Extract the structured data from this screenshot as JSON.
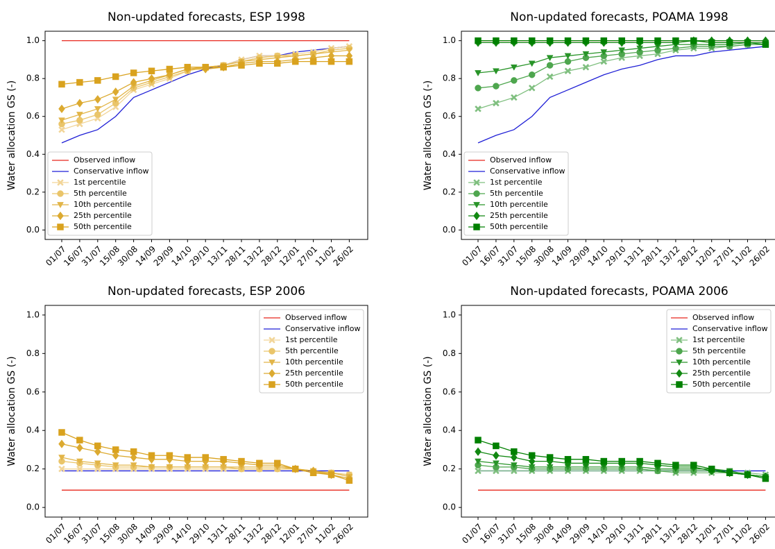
{
  "chart_data": [
    {
      "type": "line",
      "title": "Non-updated forecasts, ESP 1998",
      "y_label": "Water allocation GS (-)",
      "categories": [
        "01/07",
        "16/07",
        "31/07",
        "15/08",
        "30/08",
        "14/09",
        "29/09",
        "14/10",
        "29/10",
        "13/11",
        "28/11",
        "13/12",
        "28/12",
        "12/01",
        "27/01",
        "11/02",
        "26/02"
      ],
      "ylim": [
        -0.05,
        1.05
      ],
      "yticks": [
        {
          "value": 0,
          "label": "0.0"
        },
        0.2,
        0.4,
        0.6,
        0.8,
        {
          "value": 1,
          "label": "1.0"
        }
      ],
      "legend": "lower left",
      "series": [
        {
          "name": "Observed inflow",
          "color": "#e8261c",
          "values": [
            1,
            1,
            1,
            1,
            1,
            1,
            1,
            1,
            1,
            1,
            1,
            1,
            1,
            1,
            1,
            1,
            1
          ]
        },
        {
          "name": "Conservative inflow",
          "color": "#1f1fd6",
          "values": [
            0.46,
            0.5,
            0.53,
            0.6,
            0.7,
            0.74,
            0.78,
            0.82,
            0.85,
            0.87,
            0.9,
            0.92,
            0.92,
            0.94,
            0.95,
            0.96,
            0.97
          ]
        },
        {
          "name": "1st percentile",
          "color": "#f2d598",
          "marker": "x",
          "values": [
            0.53,
            0.56,
            0.59,
            0.65,
            0.74,
            0.77,
            0.8,
            0.84,
            0.86,
            0.87,
            0.9,
            0.92,
            0.92,
            0.93,
            0.94,
            0.96,
            0.97
          ]
        },
        {
          "name": "5th percentile",
          "color": "#eac56a",
          "marker": "circle",
          "values": [
            0.56,
            0.58,
            0.61,
            0.67,
            0.75,
            0.78,
            0.81,
            0.84,
            0.86,
            0.87,
            0.89,
            0.91,
            0.92,
            0.92,
            0.93,
            0.95,
            0.96
          ]
        },
        {
          "name": "10th percentile",
          "color": "#e2b548",
          "marker": "triangle",
          "values": [
            0.58,
            0.61,
            0.64,
            0.69,
            0.76,
            0.79,
            0.82,
            0.85,
            0.86,
            0.87,
            0.89,
            0.9,
            0.91,
            0.92,
            0.93,
            0.94,
            0.95
          ]
        },
        {
          "name": "25th percentile",
          "color": "#dcaa30",
          "marker": "diamond",
          "values": [
            0.64,
            0.67,
            0.69,
            0.73,
            0.78,
            0.8,
            0.82,
            0.85,
            0.85,
            0.86,
            0.88,
            0.89,
            0.89,
            0.9,
            0.91,
            0.92,
            0.92
          ]
        },
        {
          "name": "50th percentile",
          "color": "#d9a21e",
          "marker": "square",
          "values": [
            0.77,
            0.78,
            0.79,
            0.81,
            0.83,
            0.84,
            0.85,
            0.86,
            0.86,
            0.86,
            0.87,
            0.88,
            0.88,
            0.89,
            0.89,
            0.89,
            0.89
          ]
        }
      ]
    },
    {
      "type": "line",
      "title": "Non-updated forecasts, POAMA 1998",
      "y_label": "Water allocation GS (-)",
      "categories": [
        "01/07",
        "16/07",
        "31/07",
        "15/08",
        "30/08",
        "14/09",
        "29/09",
        "14/10",
        "29/10",
        "13/11",
        "28/11",
        "13/12",
        "28/12",
        "12/01",
        "27/01",
        "11/02",
        "26/02"
      ],
      "ylim": [
        -0.05,
        1.05
      ],
      "yticks": [
        {
          "value": 0,
          "label": "0.0"
        },
        0.2,
        0.4,
        0.6,
        0.8,
        {
          "value": 1,
          "label": "1.0"
        }
      ],
      "legend": "lower left",
      "series": [
        {
          "name": "Observed inflow",
          "color": "#e8261c",
          "values": [
            1,
            1,
            1,
            1,
            1,
            1,
            1,
            1,
            1,
            1,
            1,
            1,
            1,
            1,
            1,
            1,
            1
          ]
        },
        {
          "name": "Conservative inflow",
          "color": "#1f1fd6",
          "values": [
            0.46,
            0.5,
            0.53,
            0.6,
            0.7,
            0.74,
            0.78,
            0.82,
            0.85,
            0.87,
            0.9,
            0.92,
            0.92,
            0.94,
            0.95,
            0.96,
            0.97
          ]
        },
        {
          "name": "1st percentile",
          "color": "#7fbf7f",
          "marker": "x",
          "values": [
            0.64,
            0.67,
            0.7,
            0.75,
            0.81,
            0.84,
            0.86,
            0.89,
            0.91,
            0.92,
            0.93,
            0.95,
            0.96,
            0.96,
            0.97,
            0.98,
            0.98
          ]
        },
        {
          "name": "5th percentile",
          "color": "#4ea64e",
          "marker": "circle",
          "values": [
            0.75,
            0.76,
            0.79,
            0.82,
            0.87,
            0.89,
            0.91,
            0.92,
            0.93,
            0.94,
            0.95,
            0.96,
            0.97,
            0.97,
            0.97,
            0.98,
            0.98
          ]
        },
        {
          "name": "10th percentile",
          "color": "#289428",
          "marker": "triangle",
          "values": [
            0.83,
            0.84,
            0.86,
            0.88,
            0.91,
            0.92,
            0.93,
            0.94,
            0.95,
            0.96,
            0.97,
            0.98,
            0.98,
            0.98,
            0.98,
            0.99,
            0.99
          ]
        },
        {
          "name": "25th percentile",
          "color": "#118811",
          "marker": "diamond",
          "values": [
            0.99,
            0.99,
            0.99,
            0.99,
            0.99,
            0.99,
            0.99,
            0.99,
            0.99,
            0.99,
            0.99,
            0.99,
            1,
            1,
            1,
            1,
            1
          ]
        },
        {
          "name": "50th percentile",
          "color": "#008000",
          "marker": "square",
          "values": [
            1,
            1,
            1,
            1,
            1,
            1,
            1,
            1,
            1,
            1,
            1,
            1,
            1,
            0.99,
            0.99,
            0.99,
            0.98
          ]
        }
      ]
    },
    {
      "type": "line",
      "title": "Non-updated forecasts, ESP 2006",
      "y_label": "Water allocation GS (-)",
      "categories": [
        "01/07",
        "16/07",
        "31/07",
        "15/08",
        "30/08",
        "14/09",
        "29/09",
        "14/10",
        "29/10",
        "13/11",
        "28/11",
        "13/12",
        "28/12",
        "12/01",
        "27/01",
        "11/02",
        "26/02"
      ],
      "ylim": [
        -0.05,
        1.05
      ],
      "yticks": [
        {
          "value": 0,
          "label": "0.0"
        },
        0.2,
        0.4,
        0.6,
        0.8,
        {
          "value": 1,
          "label": "1.0"
        }
      ],
      "legend": "upper right",
      "series": [
        {
          "name": "Observed inflow",
          "color": "#e8261c",
          "values": [
            0.09,
            0.09,
            0.09,
            0.09,
            0.09,
            0.09,
            0.09,
            0.09,
            0.09,
            0.09,
            0.09,
            0.09,
            0.09,
            0.09,
            0.09,
            0.09,
            0.09
          ]
        },
        {
          "name": "Conservative inflow",
          "color": "#1f1fd6",
          "values": [
            0.19,
            0.19,
            0.19,
            0.19,
            0.19,
            0.19,
            0.19,
            0.19,
            0.19,
            0.19,
            0.19,
            0.19,
            0.19,
            0.19,
            0.19,
            0.19,
            0.19
          ]
        },
        {
          "name": "1st percentile",
          "color": "#f2d598",
          "marker": "x",
          "values": [
            0.2,
            0.2,
            0.2,
            0.2,
            0.2,
            0.2,
            0.2,
            0.2,
            0.2,
            0.2,
            0.2,
            0.2,
            0.2,
            0.2,
            0.18,
            0.18,
            0.17
          ]
        },
        {
          "name": "5th percentile",
          "color": "#eac56a",
          "marker": "circle",
          "values": [
            0.24,
            0.23,
            0.22,
            0.21,
            0.21,
            0.21,
            0.21,
            0.21,
            0.21,
            0.21,
            0.2,
            0.2,
            0.2,
            0.2,
            0.18,
            0.18,
            0.17
          ]
        },
        {
          "name": "10th percentile",
          "color": "#e2b548",
          "marker": "triangle",
          "values": [
            0.26,
            0.24,
            0.23,
            0.22,
            0.22,
            0.21,
            0.21,
            0.21,
            0.21,
            0.21,
            0.21,
            0.21,
            0.21,
            0.2,
            0.19,
            0.18,
            0.16
          ]
        },
        {
          "name": "25th percentile",
          "color": "#dcaa30",
          "marker": "diamond",
          "values": [
            0.33,
            0.31,
            0.29,
            0.27,
            0.26,
            0.25,
            0.25,
            0.24,
            0.24,
            0.24,
            0.23,
            0.22,
            0.22,
            0.2,
            0.19,
            0.17,
            0.15
          ]
        },
        {
          "name": "50th percentile",
          "color": "#d9a21e",
          "marker": "square",
          "values": [
            0.39,
            0.35,
            0.32,
            0.3,
            0.29,
            0.27,
            0.27,
            0.26,
            0.26,
            0.25,
            0.24,
            0.23,
            0.23,
            0.2,
            0.18,
            0.17,
            0.14
          ]
        }
      ]
    },
    {
      "type": "line",
      "title": "Non-updated forecasts, POAMA 2006",
      "y_label": "Water allocation GS (-)",
      "categories": [
        "01/07",
        "16/07",
        "31/07",
        "15/08",
        "30/08",
        "14/09",
        "29/09",
        "14/10",
        "29/10",
        "13/11",
        "28/11",
        "13/12",
        "28/12",
        "12/01",
        "27/01",
        "11/02",
        "26/02"
      ],
      "ylim": [
        -0.05,
        1.05
      ],
      "yticks": [
        {
          "value": 0,
          "label": "0.0"
        },
        0.2,
        0.4,
        0.6,
        0.8,
        {
          "value": 1,
          "label": "1.0"
        }
      ],
      "legend": "upper right",
      "series": [
        {
          "name": "Observed inflow",
          "color": "#e8261c",
          "values": [
            0.09,
            0.09,
            0.09,
            0.09,
            0.09,
            0.09,
            0.09,
            0.09,
            0.09,
            0.09,
            0.09,
            0.09,
            0.09,
            0.09,
            0.09,
            0.09,
            0.09
          ]
        },
        {
          "name": "Conservative inflow",
          "color": "#1f1fd6",
          "values": [
            0.19,
            0.19,
            0.19,
            0.19,
            0.19,
            0.19,
            0.19,
            0.19,
            0.19,
            0.19,
            0.19,
            0.19,
            0.19,
            0.19,
            0.19,
            0.19,
            0.19
          ]
        },
        {
          "name": "1st percentile",
          "color": "#7fbf7f",
          "marker": "x",
          "values": [
            0.19,
            0.19,
            0.19,
            0.19,
            0.19,
            0.19,
            0.19,
            0.19,
            0.19,
            0.19,
            0.19,
            0.18,
            0.18,
            0.18,
            0.18,
            0.18,
            0.17
          ]
        },
        {
          "name": "5th percentile",
          "color": "#4ea64e",
          "marker": "circle",
          "values": [
            0.22,
            0.21,
            0.21,
            0.2,
            0.2,
            0.2,
            0.2,
            0.2,
            0.2,
            0.2,
            0.19,
            0.19,
            0.19,
            0.19,
            0.18,
            0.17,
            0.16
          ]
        },
        {
          "name": "10th percentile",
          "color": "#289428",
          "marker": "triangle",
          "values": [
            0.24,
            0.23,
            0.22,
            0.21,
            0.21,
            0.21,
            0.21,
            0.21,
            0.21,
            0.21,
            0.2,
            0.2,
            0.2,
            0.2,
            0.19,
            0.17,
            0.16
          ]
        },
        {
          "name": "25th percentile",
          "color": "#118811",
          "marker": "diamond",
          "values": [
            0.29,
            0.27,
            0.26,
            0.24,
            0.24,
            0.23,
            0.23,
            0.23,
            0.23,
            0.23,
            0.22,
            0.21,
            0.21,
            0.19,
            0.18,
            0.17,
            0.16
          ]
        },
        {
          "name": "50th percentile",
          "color": "#008000",
          "marker": "square",
          "values": [
            0.35,
            0.32,
            0.29,
            0.27,
            0.26,
            0.25,
            0.25,
            0.24,
            0.24,
            0.24,
            0.23,
            0.22,
            0.22,
            0.2,
            0.18,
            0.17,
            0.15
          ]
        }
      ]
    }
  ]
}
